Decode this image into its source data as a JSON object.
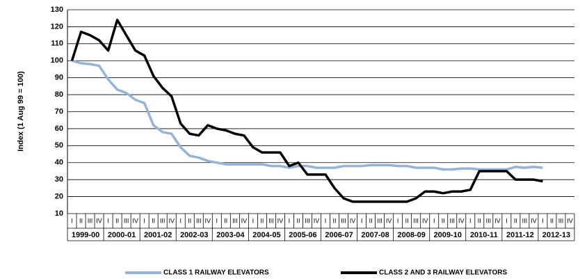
{
  "chart_data": {
    "type": "line",
    "y_label": "Index (1 Aug 99 = 100)",
    "categories": [
      "I",
      "II",
      "III",
      "IV",
      "I",
      "II",
      "III",
      "IV",
      "I",
      "II",
      "III",
      "IV",
      "I",
      "II",
      "III",
      "IV",
      "I",
      "II",
      "III",
      "IV",
      "I",
      "II",
      "III",
      "IV",
      "I",
      "II",
      "III",
      "IV",
      "I",
      "II",
      "III",
      "IV",
      "I",
      "II",
      "III",
      "IV",
      "I",
      "II",
      "III",
      "IV",
      "I",
      "II",
      "III",
      "IV",
      "I",
      "II",
      "III",
      "IV",
      "I",
      "II",
      "III",
      "IV",
      "I",
      "II",
      "III",
      "IV"
    ],
    "groups": [
      "1999-00",
      "2000-01",
      "2001-02",
      "2002-03",
      "2003-04",
      "2004-05",
      "2005-06",
      "2006-07",
      "2007-08",
      "2008-09",
      "2009-10",
      "2010-11",
      "2011-12",
      "2012-13"
    ],
    "series": [
      {
        "name": "CLASS 1 RAILWAY ELEVATORS",
        "color": "#95b3d7",
        "values": [
          100,
          98.5,
          98,
          97,
          89,
          83,
          81,
          77,
          75,
          62,
          58,
          57,
          49,
          44,
          43,
          41,
          40,
          39,
          39,
          39,
          39,
          39,
          38,
          38,
          37,
          38,
          38,
          37,
          37,
          37,
          38,
          38,
          38,
          38.5,
          38.5,
          38.5,
          38,
          38,
          37,
          37,
          37,
          36,
          36,
          36.5,
          36.5,
          36,
          36,
          36,
          36,
          37.5,
          37,
          37.5,
          37,
          null,
          null,
          null
        ]
      },
      {
        "name": "CLASS 2 AND 3 RAILWAY ELEVATORS",
        "color": "#000000",
        "values": [
          100,
          117,
          115,
          112,
          106,
          124,
          115,
          106,
          103,
          91,
          84,
          79,
          63,
          57,
          56,
          62,
          60,
          59,
          57,
          56,
          49,
          46,
          46,
          46,
          38,
          40,
          33,
          33,
          33,
          25,
          19,
          17,
          17,
          17,
          17,
          17,
          17,
          17,
          19,
          23,
          23,
          22,
          23,
          23,
          24,
          35,
          35,
          35,
          35,
          30,
          30,
          30,
          29,
          null,
          null,
          null
        ]
      }
    ],
    "ylim": [
      10,
      130
    ],
    "yticks": [
      10,
      20,
      30,
      40,
      50,
      60,
      70,
      80,
      90,
      100,
      110,
      120,
      130
    ],
    "grid": true
  }
}
